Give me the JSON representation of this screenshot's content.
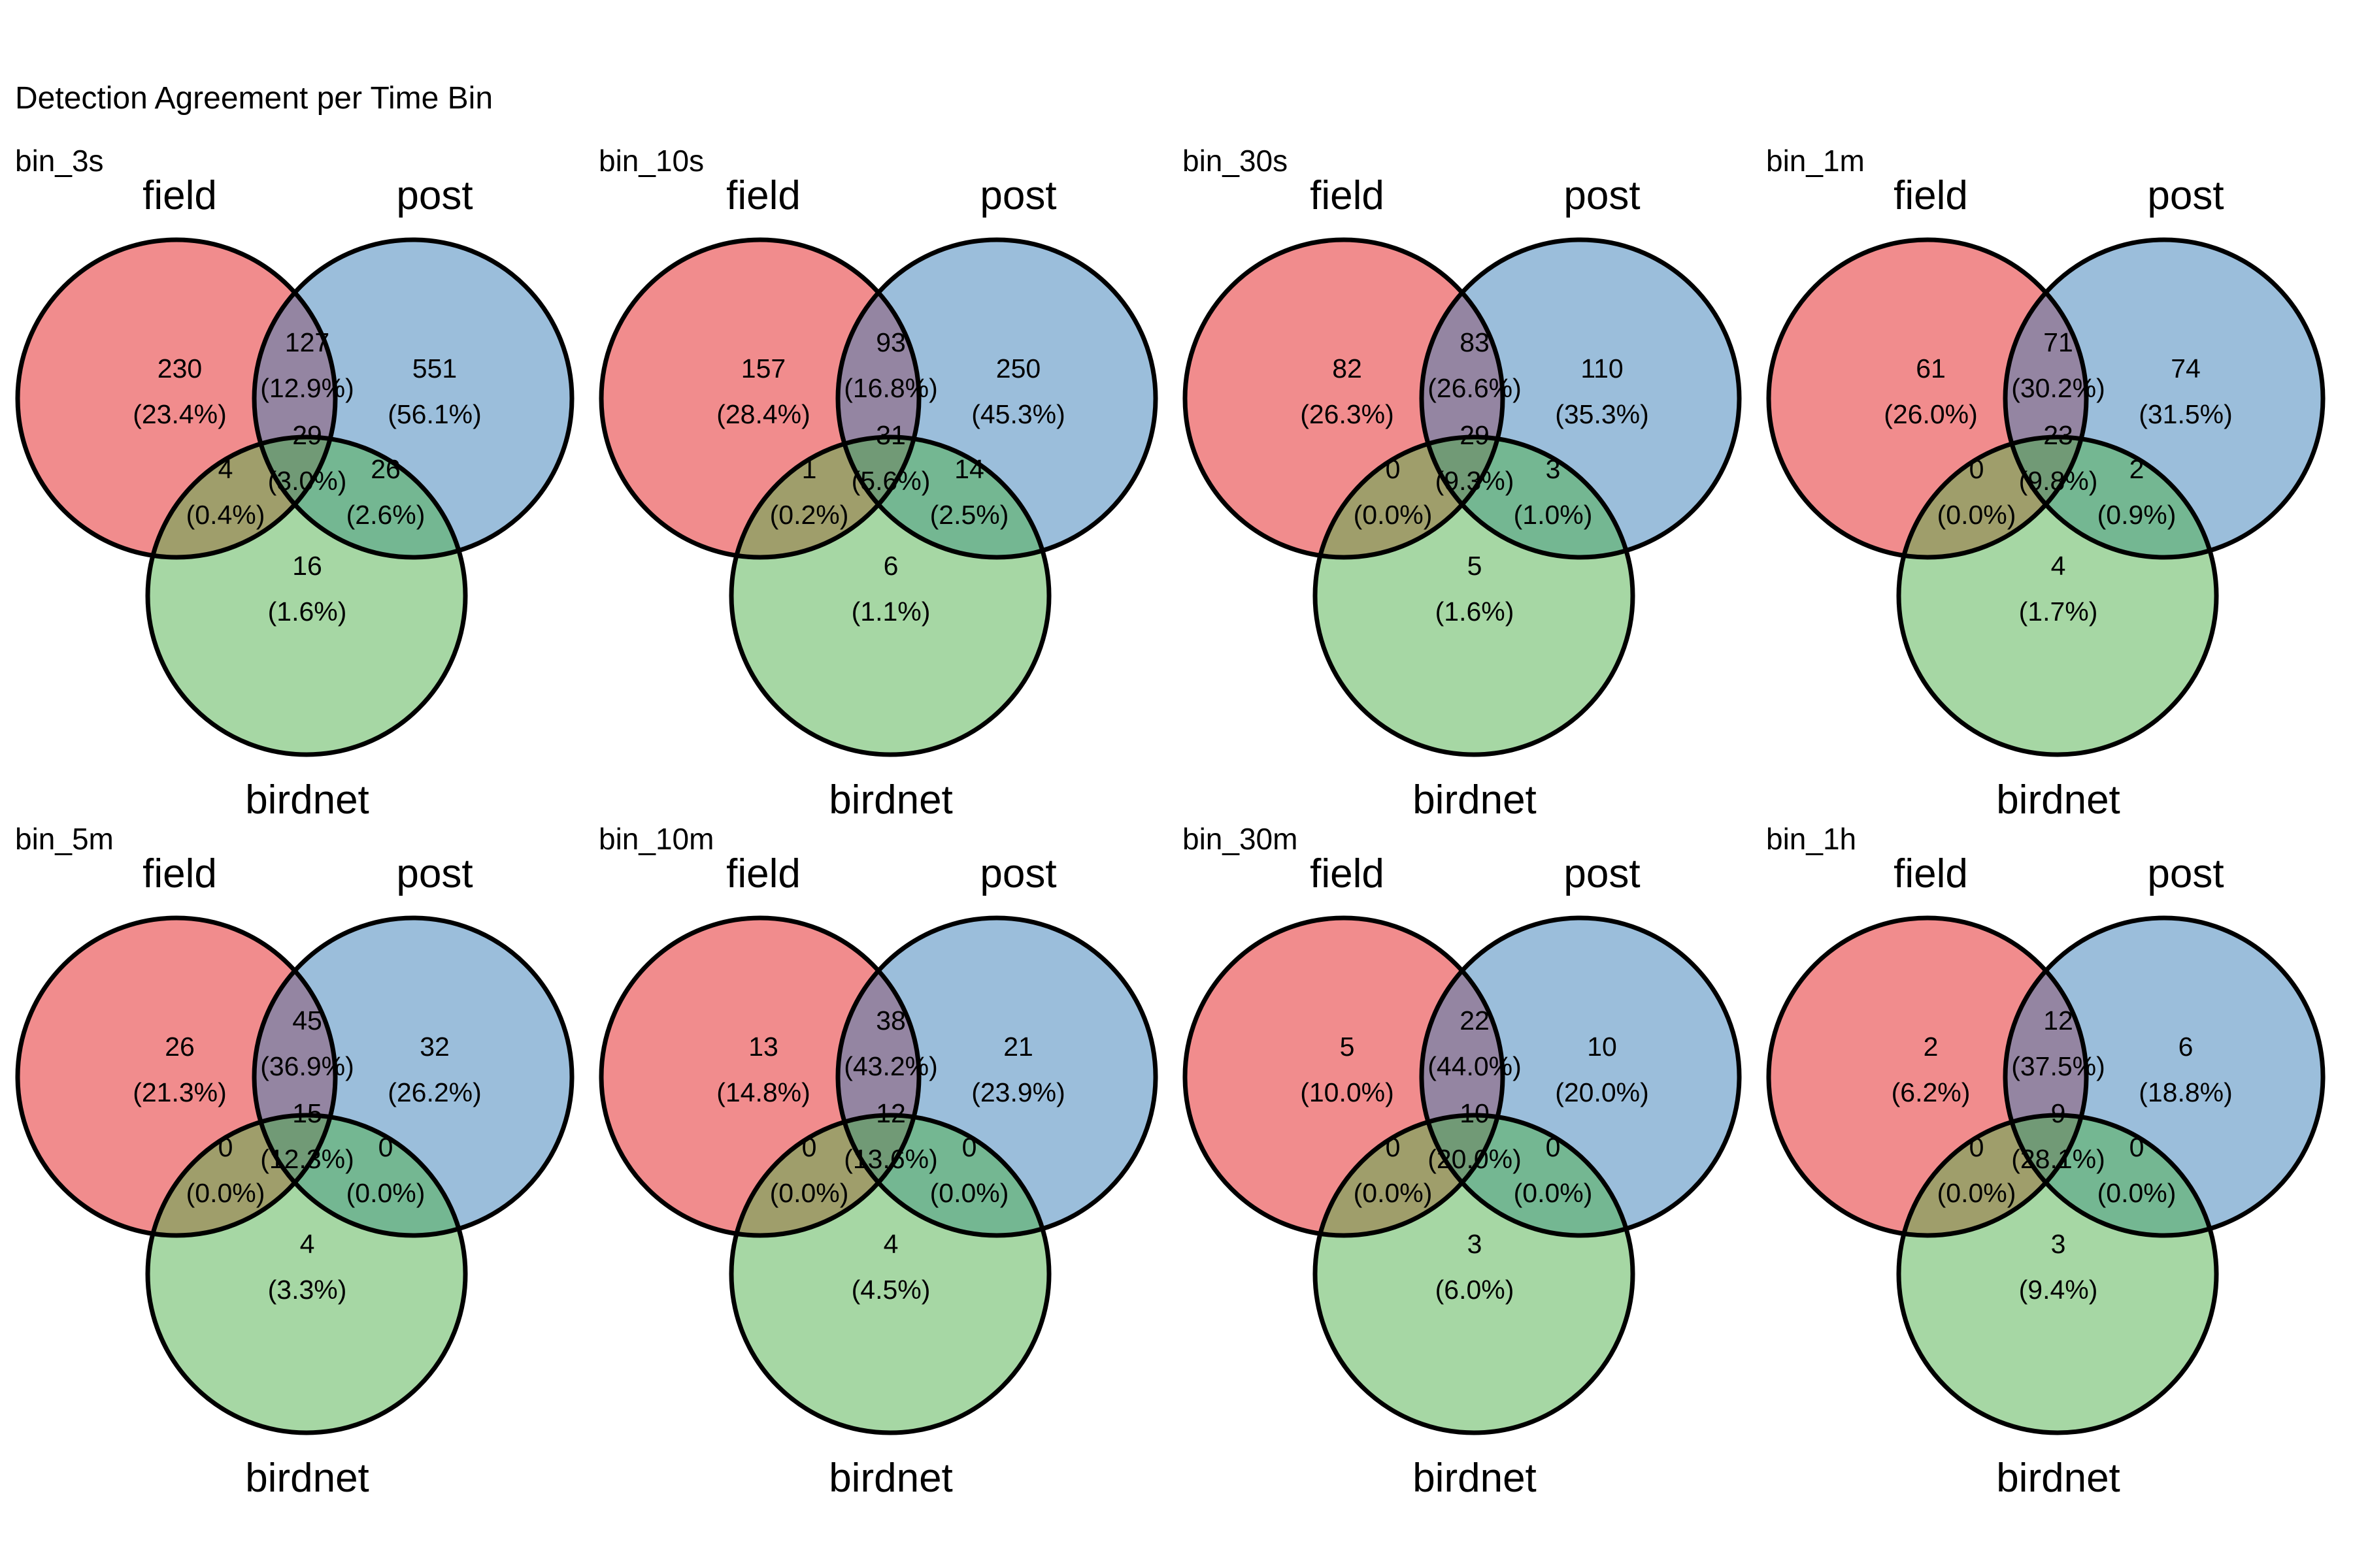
{
  "title": "Detection Agreement per Time Bin",
  "set_colors": {
    "field": "#E41A1C",
    "post": "#377EB8",
    "birdnet": "#4DAF4A"
  },
  "chart_data": [
    {
      "type": "venn",
      "panel": "bin_3s",
      "sets": [
        "field",
        "post",
        "birdnet"
      ],
      "regions": {
        "field_only": {
          "count": "230",
          "pct": "(23.4%)"
        },
        "field_post": {
          "count": "127",
          "pct": "(12.9%)"
        },
        "post_only": {
          "count": "551",
          "pct": "(56.1%)"
        },
        "all": {
          "count": "29",
          "pct": "(3.0%)"
        },
        "field_birdnet": {
          "count": "4",
          "pct": "(0.4%)"
        },
        "post_birdnet": {
          "count": "26",
          "pct": "(2.6%)"
        },
        "birdnet_only": {
          "count": "16",
          "pct": "(1.6%)"
        }
      }
    },
    {
      "type": "venn",
      "panel": "bin_10s",
      "sets": [
        "field",
        "post",
        "birdnet"
      ],
      "regions": {
        "field_only": {
          "count": "157",
          "pct": "(28.4%)"
        },
        "field_post": {
          "count": "93",
          "pct": "(16.8%)"
        },
        "post_only": {
          "count": "250",
          "pct": "(45.3%)"
        },
        "all": {
          "count": "31",
          "pct": "(5.6%)"
        },
        "field_birdnet": {
          "count": "1",
          "pct": "(0.2%)"
        },
        "post_birdnet": {
          "count": "14",
          "pct": "(2.5%)"
        },
        "birdnet_only": {
          "count": "6",
          "pct": "(1.1%)"
        }
      }
    },
    {
      "type": "venn",
      "panel": "bin_30s",
      "sets": [
        "field",
        "post",
        "birdnet"
      ],
      "regions": {
        "field_only": {
          "count": "82",
          "pct": "(26.3%)"
        },
        "field_post": {
          "count": "83",
          "pct": "(26.6%)"
        },
        "post_only": {
          "count": "110",
          "pct": "(35.3%)"
        },
        "all": {
          "count": "29",
          "pct": "(9.3%)"
        },
        "field_birdnet": {
          "count": "0",
          "pct": "(0.0%)"
        },
        "post_birdnet": {
          "count": "3",
          "pct": "(1.0%)"
        },
        "birdnet_only": {
          "count": "5",
          "pct": "(1.6%)"
        }
      }
    },
    {
      "type": "venn",
      "panel": "bin_1m",
      "sets": [
        "field",
        "post",
        "birdnet"
      ],
      "regions": {
        "field_only": {
          "count": "61",
          "pct": "(26.0%)"
        },
        "field_post": {
          "count": "71",
          "pct": "(30.2%)"
        },
        "post_only": {
          "count": "74",
          "pct": "(31.5%)"
        },
        "all": {
          "count": "23",
          "pct": "(9.8%)"
        },
        "field_birdnet": {
          "count": "0",
          "pct": "(0.0%)"
        },
        "post_birdnet": {
          "count": "2",
          "pct": "(0.9%)"
        },
        "birdnet_only": {
          "count": "4",
          "pct": "(1.7%)"
        }
      }
    },
    {
      "type": "venn",
      "panel": "bin_5m",
      "sets": [
        "field",
        "post",
        "birdnet"
      ],
      "regions": {
        "field_only": {
          "count": "26",
          "pct": "(21.3%)"
        },
        "field_post": {
          "count": "45",
          "pct": "(36.9%)"
        },
        "post_only": {
          "count": "32",
          "pct": "(26.2%)"
        },
        "all": {
          "count": "15",
          "pct": "(12.3%)"
        },
        "field_birdnet": {
          "count": "0",
          "pct": "(0.0%)"
        },
        "post_birdnet": {
          "count": "0",
          "pct": "(0.0%)"
        },
        "birdnet_only": {
          "count": "4",
          "pct": "(3.3%)"
        }
      }
    },
    {
      "type": "venn",
      "panel": "bin_10m",
      "sets": [
        "field",
        "post",
        "birdnet"
      ],
      "regions": {
        "field_only": {
          "count": "13",
          "pct": "(14.8%)"
        },
        "field_post": {
          "count": "38",
          "pct": "(43.2%)"
        },
        "post_only": {
          "count": "21",
          "pct": "(23.9%)"
        },
        "all": {
          "count": "12",
          "pct": "(13.6%)"
        },
        "field_birdnet": {
          "count": "0",
          "pct": "(0.0%)"
        },
        "post_birdnet": {
          "count": "0",
          "pct": "(0.0%)"
        },
        "birdnet_only": {
          "count": "4",
          "pct": "(4.5%)"
        }
      }
    },
    {
      "type": "venn",
      "panel": "bin_30m",
      "sets": [
        "field",
        "post",
        "birdnet"
      ],
      "regions": {
        "field_only": {
          "count": "5",
          "pct": "(10.0%)"
        },
        "field_post": {
          "count": "22",
          "pct": "(44.0%)"
        },
        "post_only": {
          "count": "10",
          "pct": "(20.0%)"
        },
        "all": {
          "count": "10",
          "pct": "(20.0%)"
        },
        "field_birdnet": {
          "count": "0",
          "pct": "(0.0%)"
        },
        "post_birdnet": {
          "count": "0",
          "pct": "(0.0%)"
        },
        "birdnet_only": {
          "count": "3",
          "pct": "(6.0%)"
        }
      }
    },
    {
      "type": "venn",
      "panel": "bin_1h",
      "sets": [
        "field",
        "post",
        "birdnet"
      ],
      "regions": {
        "field_only": {
          "count": "2",
          "pct": "(6.2%)"
        },
        "field_post": {
          "count": "12",
          "pct": "(37.5%)"
        },
        "post_only": {
          "count": "6",
          "pct": "(18.8%)"
        },
        "all": {
          "count": "9",
          "pct": "(28.1%)"
        },
        "field_birdnet": {
          "count": "0",
          "pct": "(0.0%)"
        },
        "post_birdnet": {
          "count": "0",
          "pct": "(0.0%)"
        },
        "birdnet_only": {
          "count": "3",
          "pct": "(9.4%)"
        }
      }
    }
  ]
}
